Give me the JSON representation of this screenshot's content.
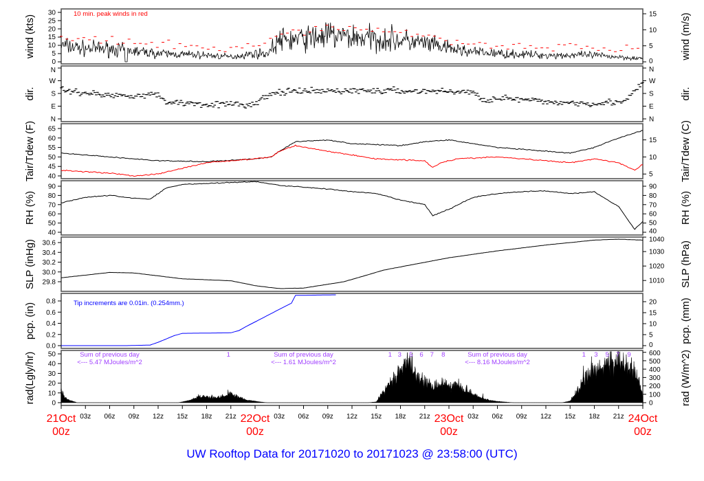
{
  "title": "UW Rooftop Data for 20171020  to  20171023 @ 23:58:00  (UTC)",
  "colors": {
    "peak": "#ff0000",
    "dew": "#ff0000",
    "precip": "#0000ff",
    "annotation": "#a040ff",
    "title": "#0000ff",
    "date": "#ff0000"
  },
  "chart_data": [
    {
      "type": "line",
      "id": "wind",
      "ylabel": "wind (kts)",
      "ylabel_right": "wind (m/s)",
      "ylim": [
        0,
        30
      ],
      "ticks_left": [
        0,
        5,
        10,
        15,
        20,
        25,
        30
      ],
      "ticks_right": [
        0,
        5,
        10,
        15
      ],
      "annotation": "10 min. peak winds in red",
      "x_hours": [
        0,
        3,
        6,
        8,
        12,
        18,
        21,
        24,
        25.5,
        27,
        30,
        33,
        36,
        39,
        42,
        45,
        48,
        51,
        54,
        60,
        66,
        69,
        72
      ],
      "mean": [
        10,
        8,
        8,
        7,
        5,
        4,
        3,
        5,
        5,
        13,
        14,
        16,
        15,
        14,
        13,
        11,
        8,
        6,
        5,
        4,
        4,
        3,
        2
      ],
      "peak_offset": 5
    },
    {
      "type": "scatter",
      "id": "dir",
      "ylabel": "dir.",
      "ylabel_right": "dir.",
      "ylim": [
        0,
        360
      ],
      "tick_values": [
        0,
        90,
        180,
        270,
        360
      ],
      "tick_labels": [
        "N",
        "E",
        "S",
        "W",
        "N"
      ],
      "x_hours": [
        0,
        6,
        12,
        13,
        18,
        24,
        25,
        27,
        36,
        48,
        51,
        52,
        54,
        60,
        66,
        70,
        71,
        72
      ],
      "degrees": [
        205,
        165,
        170,
        120,
        105,
        100,
        150,
        190,
        200,
        195,
        190,
        130,
        150,
        120,
        110,
        125,
        200,
        250
      ]
    },
    {
      "type": "line",
      "id": "temp",
      "ylabel": "Tair/Tdew (F)",
      "ylabel_right": "Tair/Tdew (C)",
      "ylim": [
        40,
        65
      ],
      "ticks_left": [
        40,
        45,
        50,
        55,
        60,
        65
      ],
      "ticks_right": [
        5,
        10,
        15
      ],
      "x_hours": [
        0,
        3,
        6,
        12,
        18,
        24,
        26,
        27,
        29,
        33,
        36,
        42,
        45,
        48,
        51,
        54,
        60,
        63,
        66,
        69,
        72
      ],
      "tair": [
        52,
        51,
        50,
        48,
        47.5,
        49,
        50,
        53,
        58,
        59,
        57,
        56,
        58,
        59,
        57,
        55,
        53,
        52,
        55,
        60,
        64
      ],
      "tdew_x": [
        0,
        6,
        9,
        12,
        15,
        18,
        24,
        26,
        27,
        29,
        33,
        36,
        39,
        42,
        45,
        46,
        47,
        49,
        54,
        60,
        63,
        66,
        69,
        71,
        72
      ],
      "tdew": [
        43,
        41.5,
        40,
        41,
        44,
        47,
        49,
        50,
        53,
        56,
        53,
        51,
        49,
        48.5,
        48,
        44.5,
        47,
        49,
        50,
        48,
        47,
        49,
        47,
        43,
        46
      ]
    },
    {
      "type": "line",
      "id": "rh",
      "ylabel": "RH (%)",
      "ylabel_right": "RH (%)",
      "ylim": [
        40,
        90
      ],
      "ticks_left": [
        40,
        50,
        60,
        70,
        80,
        90
      ],
      "ticks_right": [
        40,
        50,
        60,
        70,
        80,
        90
      ],
      "x_hours": [
        0,
        3,
        6,
        9,
        11,
        13,
        15,
        18,
        24,
        27,
        33,
        36,
        39,
        42,
        45,
        46,
        48,
        51,
        54,
        57,
        60,
        63,
        66,
        69,
        71,
        72
      ],
      "values": [
        72,
        78,
        80,
        77,
        76,
        88,
        92,
        93,
        95,
        91,
        87,
        84,
        82,
        75,
        70,
        58,
        65,
        78,
        82,
        84,
        85,
        82,
        84,
        68,
        43,
        52
      ]
    },
    {
      "type": "line",
      "id": "slp",
      "ylabel": "SLP (inHg)",
      "ylabel_right": "SLP (hPa)",
      "ylim": [
        29.8,
        30.6
      ],
      "ticks_left": [
        29.8,
        30.0,
        30.2,
        30.4,
        30.6
      ],
      "ticks_right": [
        1010,
        1020,
        1030,
        1040
      ],
      "x_hours": [
        0,
        6,
        9,
        15,
        21,
        24,
        27,
        30,
        35,
        40,
        48,
        54,
        60,
        66,
        69,
        72
      ],
      "values": [
        29.88,
        29.99,
        29.98,
        29.86,
        29.82,
        29.72,
        29.66,
        29.67,
        29.8,
        30.04,
        30.29,
        30.43,
        30.55,
        30.65,
        30.67,
        30.65
      ]
    },
    {
      "type": "line",
      "id": "pcp",
      "ylabel": "pcp. (in)",
      "ylabel_right": "pcp. (mm)",
      "ylim": [
        0,
        0.8
      ],
      "ticks_left": [
        0.0,
        0.2,
        0.4,
        0.6,
        0.8
      ],
      "ticks_right": [
        0,
        5,
        10,
        15,
        20
      ],
      "annotation": "Tip increments are 0.01in. (0.254mm.)",
      "x_hours": [
        0,
        8,
        11,
        12,
        14,
        15,
        21,
        22,
        23,
        25,
        27,
        28.5,
        29,
        34
      ],
      "values": [
        0,
        0,
        0.01,
        0.06,
        0.18,
        0.22,
        0.23,
        0.27,
        0.35,
        0.5,
        0.65,
        0.76,
        0.9,
        0.91
      ]
    },
    {
      "type": "area",
      "id": "rad",
      "ylabel": "rad(Lgly/hr)",
      "ylabel_right": "rad (W/m^2)",
      "ylim": [
        0,
        50
      ],
      "ticks_left": [
        0,
        10,
        20,
        30,
        40,
        50
      ],
      "ticks_right": [
        0,
        100,
        200,
        300,
        400,
        500,
        600
      ],
      "x_hours": [
        0,
        0.5,
        1,
        2,
        14.5,
        16,
        17,
        19,
        20.5,
        21,
        22,
        23,
        25,
        25.5,
        38,
        39,
        40,
        41,
        42,
        43,
        44,
        45,
        46,
        47,
        48,
        49,
        50,
        51,
        52,
        53,
        54,
        56,
        62,
        63,
        64,
        65,
        66,
        67,
        68,
        69,
        70,
        71,
        72
      ],
      "w_m2": [
        130,
        60,
        30,
        0,
        0,
        30,
        75,
        60,
        80,
        110,
        70,
        30,
        5,
        0,
        0,
        10,
        140,
        280,
        400,
        480,
        330,
        250,
        200,
        230,
        200,
        230,
        160,
        120,
        60,
        30,
        15,
        0,
        0,
        20,
        150,
        320,
        370,
        420,
        500,
        500,
        470,
        380,
        90
      ],
      "day_notes": [
        {
          "line1": "Sum of previous day",
          "line2": "<--- 5.47 MJoules/m^2",
          "at_hour": 6
        },
        {
          "line1": "Sum of previous day",
          "line2": "<--- 1.61 MJoules/m^2",
          "at_hour": 30
        },
        {
          "line1": "Sum of previous day",
          "line2": "<--- 8.16 MJoules/m^2",
          "at_hour": 54
        }
      ],
      "markers": [
        {
          "label": "1",
          "at_hour": 20.7
        },
        {
          "label": "1",
          "at_hour": 40.7
        },
        {
          "label": "3",
          "at_hour": 41.9
        },
        {
          "label": "5",
          "at_hour": 43.3
        },
        {
          "label": "6",
          "at_hour": 44.6
        },
        {
          "label": "7",
          "at_hour": 45.9
        },
        {
          "label": "8",
          "at_hour": 47.3
        },
        {
          "label": "1",
          "at_hour": 64.7
        },
        {
          "label": "3",
          "at_hour": 66.2
        },
        {
          "label": "5",
          "at_hour": 67.6
        },
        {
          "label": "7",
          "at_hour": 68.9
        },
        {
          "label": "9",
          "at_hour": 70.3
        }
      ]
    }
  ],
  "x_axis": {
    "hour_labels": [
      "03z",
      "06z",
      "09z",
      "12z",
      "15z",
      "18z",
      "21z"
    ],
    "dates": [
      {
        "date": "21Oct",
        "hour": "00z"
      },
      {
        "date": "22Oct",
        "hour": "00z"
      },
      {
        "date": "23Oct",
        "hour": "00z"
      },
      {
        "date": "24Oct",
        "hour": "00z"
      }
    ],
    "total_hours": 72
  }
}
